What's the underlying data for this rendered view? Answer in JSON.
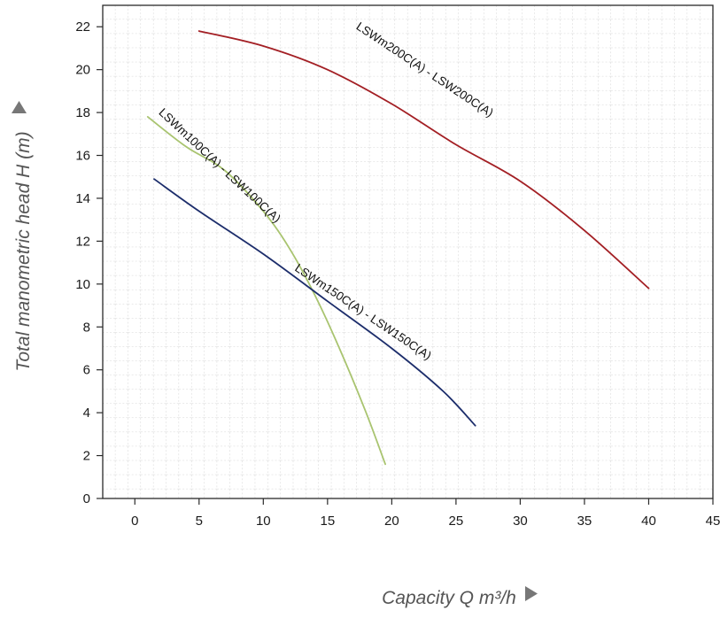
{
  "chart_data": {
    "type": "line",
    "title": "",
    "xlabel": "Capacity Q m³/h",
    "ylabel": "Total manometric head H (m)",
    "xlim": [
      -2.5,
      45
    ],
    "ylim": [
      0,
      23
    ],
    "x_ticks": [
      0,
      5,
      10,
      15,
      20,
      25,
      30,
      35,
      40,
      45
    ],
    "y_ticks": [
      0,
      2,
      4,
      6,
      8,
      10,
      12,
      14,
      16,
      18,
      20,
      22
    ],
    "grid": true,
    "legend": "none",
    "series": [
      {
        "name": "LSWm200C(A) - LSW200C(A)",
        "color": "#a31f24",
        "points": [
          [
            5,
            21.8
          ],
          [
            10,
            21.1
          ],
          [
            15,
            20.0
          ],
          [
            20,
            18.4
          ],
          [
            25,
            16.5
          ],
          [
            30,
            14.8
          ],
          [
            35,
            12.5
          ],
          [
            40,
            9.8
          ]
        ]
      },
      {
        "name": "LSWm100C(A) - LSW100C(A)",
        "color": "#a9c470",
        "points": [
          [
            1,
            17.8
          ],
          [
            4,
            16.4
          ],
          [
            7,
            15.3
          ],
          [
            10,
            13.4
          ],
          [
            12,
            11.7
          ],
          [
            14,
            9.5
          ],
          [
            16,
            6.9
          ],
          [
            18,
            4.0
          ],
          [
            19.5,
            1.6
          ]
        ]
      },
      {
        "name": "LSWm150C(A) - LSW150C(A)",
        "color": "#1c2d6b",
        "points": [
          [
            1.5,
            14.9
          ],
          [
            5,
            13.4
          ],
          [
            10,
            11.4
          ],
          [
            15,
            9.2
          ],
          [
            20,
            7.0
          ],
          [
            24,
            5.0
          ],
          [
            26.5,
            3.4
          ]
        ]
      }
    ]
  }
}
